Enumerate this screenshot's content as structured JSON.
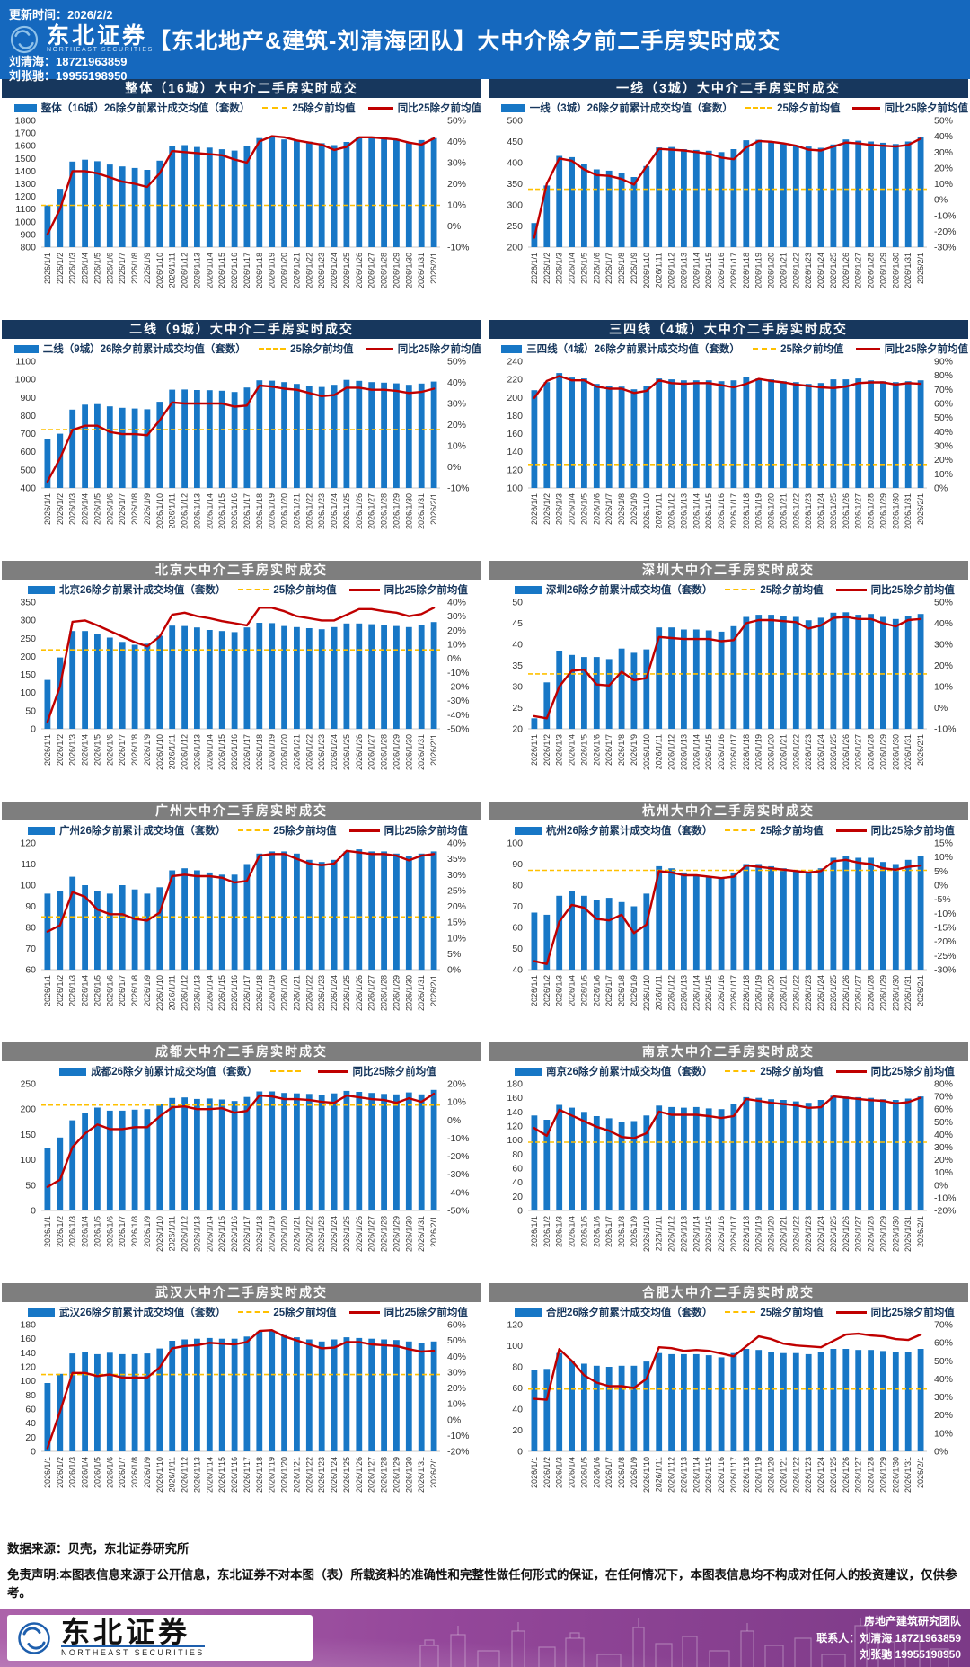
{
  "header": {
    "update_time": "更新时间：2026/2/2",
    "brand": {
      "name": "东北证券",
      "sub": "NORTHEAST SECURITIES"
    },
    "title": "【东北地产&建筑-刘清海团队】大中介除夕前二手房实时成交",
    "contact1": "刘清海：18721963859",
    "contact2": "刘张驰：19955198950"
  },
  "colors": {
    "header_bg": "#1568BE",
    "navy_title_bar": "#17375D",
    "gray_title_bar": "#7E7E7E",
    "bar": "#1777C6",
    "baseline_dash": "#FFC000",
    "yoy_line": "#C00000"
  },
  "footer": {
    "source_label": "数据来源：",
    "source_text": "贝壳，东北证券研究所",
    "disclaimer_label": "免责声明:",
    "disclaimer_text": "本图表信息来源于公开信息，东北证券不对本图（表）所载资料的准确性和完整性做任何形式的保证，在任何情况下，本图表信息均不构成对任何人的投资建议，仅供参考。",
    "band": {
      "brand": "东北证券",
      "brand_sub": "NORTHEAST SECURITIES",
      "team": "房地产建筑研究团队",
      "contact1": "联系人：刘清海 18721963859",
      "contact2": "刘张驰 19955198950"
    }
  },
  "dates": [
    "2026/1/1",
    "2026/1/2",
    "2026/1/3",
    "2026/1/4",
    "2026/1/5",
    "2026/1/6",
    "2026/1/7",
    "2026/1/8",
    "2026/1/9",
    "2026/1/10",
    "2026/1/11",
    "2026/1/12",
    "2026/1/13",
    "2026/1/14",
    "2026/1/15",
    "2026/1/16",
    "2026/1/17",
    "2026/1/18",
    "2026/1/19",
    "2026/1/20",
    "2026/1/21",
    "2026/1/22",
    "2026/1/23",
    "2026/1/24",
    "2026/1/25",
    "2026/1/26",
    "2026/1/27",
    "2026/1/28",
    "2026/1/29",
    "2026/1/30",
    "2026/1/31",
    "2026/2/1"
  ],
  "chart_data": [
    {
      "key": "overall-16",
      "type": "bar+line",
      "title": "整体（16城）大中介二手房实时成交",
      "header": "navy",
      "legend": {
        "bar": "整体（16城）26除夕前累计成交均值（套数）",
        "dash": "25除夕前均值",
        "line": "同比25除夕前均值"
      },
      "left_axis": {
        "min": 800,
        "max": 1800,
        "step": 100
      },
      "right_axis": {
        "min": -10,
        "max": 50,
        "step": 10
      },
      "baseline": 1130,
      "bars": [
        1130,
        1260,
        1475,
        1490,
        1478,
        1452,
        1437,
        1425,
        1410,
        1482,
        1597,
        1605,
        1590,
        1585,
        1572,
        1562,
        1595,
        1660,
        1668,
        1650,
        1640,
        1632,
        1620,
        1605,
        1630,
        1665,
        1662,
        1655,
        1650,
        1628,
        1645,
        1660
      ],
      "yoy": [
        -4,
        8,
        26,
        26,
        25,
        23,
        21,
        20,
        18.5,
        25,
        35.5,
        35,
        34.5,
        34,
        33.5,
        31.5,
        30,
        40,
        42.5,
        42,
        40.5,
        39.5,
        38.5,
        36,
        37.5,
        42,
        42,
        41.5,
        41,
        39.5,
        38.5,
        41.5
      ]
    },
    {
      "key": "tier1-3",
      "type": "bar+line",
      "title": "一线（3城）大中介二手房实时成交",
      "header": "navy",
      "legend": {
        "bar": "一线（3城）26除夕前累计成交均值（套数）",
        "dash": "25除夕前均值",
        "line": "同比25除夕前均值"
      },
      "left_axis": {
        "min": 200,
        "max": 500,
        "step": 50
      },
      "right_axis": {
        "min": -30,
        "max": 50,
        "step": 10
      },
      "baseline": 337,
      "bars": [
        257,
        346,
        416,
        413,
        396,
        384,
        381,
        375,
        366,
        392,
        436,
        437,
        432,
        430,
        428,
        425,
        432,
        453,
        454,
        448,
        444,
        441,
        438,
        435,
        443,
        455,
        452,
        450,
        447,
        444,
        450,
        460
      ],
      "yoy": [
        -24,
        10,
        26,
        24.5,
        19,
        15.5,
        15,
        13,
        9.5,
        21,
        32,
        31.5,
        31,
        30,
        29,
        26.5,
        25.5,
        33,
        37,
        36.5,
        35.5,
        34,
        31.5,
        31,
        33.5,
        36,
        35.5,
        34.5,
        34,
        33.5,
        34.5,
        38.5
      ]
    },
    {
      "key": "tier2-9",
      "type": "bar+line",
      "title": "二线（9城）大中介二手房实时成交",
      "header": "navy",
      "legend": {
        "bar": "二线（9城）26除夕前累计成交均值（套数）",
        "dash": "25除夕前均值",
        "line": "同比25除夕前均值"
      },
      "left_axis": {
        "min": 400,
        "max": 1100,
        "step": 100
      },
      "right_axis": {
        "min": -10,
        "max": 50,
        "step": 10
      },
      "baseline": 722,
      "bars": [
        668,
        700,
        833,
        860,
        863,
        851,
        843,
        839,
        835,
        876,
        943,
        944,
        941,
        940,
        937,
        930,
        955,
        995,
        993,
        985,
        975,
        966,
        958,
        970,
        997,
        992,
        985,
        982,
        978,
        970,
        977,
        988
      ],
      "yoy": [
        -7,
        4,
        17.5,
        19.5,
        19.5,
        16.5,
        15.5,
        15.5,
        15,
        22,
        30.5,
        30,
        30,
        30,
        30,
        28.5,
        29,
        38.5,
        38,
        37,
        36.5,
        35,
        33.5,
        34,
        37.5,
        37.5,
        36.5,
        36.5,
        36,
        35,
        35.5,
        37
      ]
    },
    {
      "key": "tier34-4",
      "type": "bar+line",
      "title": "三四线（4城）大中介二手房实时成交",
      "header": "navy",
      "legend": {
        "bar": "三四线（4城）26除夕前累计成交均值（套数）",
        "dash": "25除夕前均值",
        "line": "同比25除夕前均值"
      },
      "left_axis": {
        "min": 100,
        "max": 240,
        "step": 20
      },
      "right_axis": {
        "min": 0,
        "max": 90,
        "step": 10
      },
      "baseline": 126,
      "bars": [
        208,
        217,
        227,
        222,
        221,
        215,
        213,
        212,
        209,
        213,
        221,
        220,
        219,
        219,
        219,
        218,
        219,
        223,
        221,
        220,
        218,
        217,
        215,
        216,
        220,
        220,
        221,
        219,
        218,
        217,
        218,
        219
      ],
      "yoy": [
        64,
        76,
        79.5,
        76.5,
        76.5,
        72,
        70.5,
        70.5,
        67.5,
        69,
        76.5,
        74.5,
        74,
        74.5,
        74.5,
        73,
        71.5,
        74,
        77.5,
        76,
        75,
        73.5,
        72.5,
        71.5,
        71,
        72,
        74.5,
        75,
        75,
        73.5,
        74.5,
        74
      ]
    },
    {
      "key": "beijing",
      "type": "bar+line",
      "title": "北京大中介二手房实时成交",
      "header": "gray",
      "legend": {
        "bar": "北京26除夕前累计成交均值（套数）",
        "dash": "25除夕前均值",
        "line": "同比25除夕前均值"
      },
      "left_axis": {
        "min": 0,
        "max": 350,
        "step": 50
      },
      "right_axis": {
        "min": -50,
        "max": 40,
        "step": 10
      },
      "baseline": 218,
      "bars": [
        135,
        197,
        270,
        270,
        262,
        252,
        240,
        232,
        235,
        257,
        285,
        284,
        280,
        273,
        270,
        267,
        280,
        293,
        292,
        284,
        281,
        278,
        275,
        281,
        291,
        291,
        289,
        287,
        284,
        281,
        288,
        295
      ],
      "yoy": [
        -45,
        -20,
        26,
        27,
        23.5,
        19.5,
        15.5,
        11.5,
        8.5,
        15.5,
        31,
        32.5,
        30,
        28.5,
        26.5,
        25,
        23.5,
        36,
        36,
        33.5,
        30,
        28.5,
        27,
        27,
        31,
        35,
        35,
        33.5,
        32.5,
        30,
        31.5,
        36
      ]
    },
    {
      "key": "shenzhen",
      "type": "bar+line",
      "title": "深圳大中介二手房实时成交",
      "header": "gray",
      "legend": {
        "bar": "深圳26除夕前累计成交均值（套数）",
        "dash": "25除夕前均值",
        "line": "同比25除夕前均值"
      },
      "left_axis": {
        "min": 20,
        "max": 50,
        "step": 5
      },
      "right_axis": {
        "min": -10,
        "max": 50,
        "step": 10
      },
      "baseline": 33,
      "bars": [
        22.5,
        31,
        38.5,
        37.5,
        37,
        37,
        36.5,
        39,
        38,
        38.8,
        44,
        44,
        43.5,
        43.5,
        43.3,
        43,
        44.3,
        46.5,
        47,
        47,
        46.7,
        46.5,
        45.7,
        46.3,
        47.5,
        47.6,
        47,
        47.2,
        46.5,
        46,
        46.8,
        47.2
      ],
      "yoy": [
        -4,
        -5,
        10,
        17.5,
        18,
        11,
        10.5,
        17,
        13,
        14,
        33.5,
        33,
        32.5,
        32.5,
        32.5,
        31.5,
        32,
        40,
        41.5,
        41.5,
        41,
        40.5,
        37.5,
        39,
        42.5,
        43,
        42,
        42,
        40,
        38.5,
        41.5,
        42
      ]
    },
    {
      "key": "guangzhou",
      "type": "bar+line",
      "title": "广州大中介二手房实时成交",
      "header": "gray",
      "legend": {
        "bar": "广州26除夕前累计成交均值（套数）",
        "dash": "25除夕前均值",
        "line": "同比25除夕前均值"
      },
      "left_axis": {
        "min": 60,
        "max": 120,
        "step": 10
      },
      "right_axis": {
        "min": 0,
        "max": 40,
        "step": 5
      },
      "baseline": 85,
      "bars": [
        96,
        97,
        104,
        100,
        97,
        96,
        100,
        98,
        96,
        99,
        107,
        108,
        107,
        106,
        105,
        105,
        110,
        115,
        116,
        116,
        115,
        112,
        111,
        112,
        116,
        117,
        116,
        116,
        115,
        114,
        115,
        116
      ],
      "yoy": [
        12,
        14,
        24.5,
        23,
        19,
        17.5,
        17.5,
        16,
        15.5,
        18,
        29.5,
        30,
        29.5,
        29.5,
        29,
        27.5,
        28,
        36,
        36.5,
        36.5,
        35,
        33.5,
        33,
        33.5,
        37.5,
        37,
        36.5,
        36.5,
        36,
        34.5,
        36,
        36.5
      ]
    },
    {
      "key": "hangzhou",
      "type": "bar+line",
      "title": "杭州大中介二手房实时成交",
      "header": "gray",
      "legend": {
        "bar": "杭州26除夕前累计成交均值（套数）",
        "dash": "25除夕前均值",
        "line": "同比25除夕前均值"
      },
      "left_axis": {
        "min": 40,
        "max": 100,
        "step": 10
      },
      "right_axis": {
        "min": -30,
        "max": 15,
        "step": 5
      },
      "baseline": 87,
      "bars": [
        67,
        66,
        75,
        77,
        75,
        73,
        74,
        72,
        70,
        76,
        89,
        88,
        86,
        85,
        84,
        83,
        86,
        90,
        90,
        89,
        88,
        87,
        86,
        88,
        93,
        94,
        93,
        93,
        91,
        90,
        92,
        94
      ],
      "yoy": [
        -27,
        -28,
        -13,
        -7,
        -8,
        -12,
        -12.5,
        -10.5,
        -17,
        -14,
        5,
        4.5,
        3.5,
        3.5,
        3,
        2.5,
        3,
        7,
        6.5,
        6,
        5.5,
        5,
        4.5,
        5,
        8.5,
        9,
        8,
        7.5,
        6,
        5.5,
        6.5,
        7
      ]
    },
    {
      "key": "chengdu",
      "type": "bar+line",
      "title": "成都大中介二手房实时成交",
      "header": "gray",
      "legend": {
        "bar": "成都26除夕前累计成交均值（套数）",
        "dash": "",
        "line": "同比25除夕前均值"
      },
      "left_axis": {
        "min": 0,
        "max": 250,
        "step": 50
      },
      "right_axis": {
        "min": -50,
        "max": 20,
        "step": 10
      },
      "baseline": 208,
      "bars": [
        124,
        144,
        178,
        193,
        203,
        197,
        197,
        199,
        200,
        210,
        222,
        223,
        220,
        221,
        219,
        216,
        224,
        235,
        235,
        232,
        231,
        230,
        228,
        231,
        236,
        234,
        232,
        230,
        229,
        233,
        229,
        238
      ],
      "yoy": [
        -37,
        -33,
        -15,
        -7.5,
        -2.5,
        -5,
        -5,
        -4,
        -4,
        2,
        7,
        7.5,
        6,
        6,
        6.5,
        4,
        5,
        13.5,
        13,
        11.5,
        11.5,
        11,
        10,
        9.5,
        13.5,
        12.5,
        11.5,
        11,
        9.5,
        12,
        10,
        14.5
      ]
    },
    {
      "key": "nanjing",
      "type": "bar+line",
      "title": "南京大中介二手房实时成交",
      "header": "gray",
      "legend": {
        "bar": "南京26除夕前累计成交均值（套数）",
        "dash": "25除夕前均值",
        "line": "同比25除夕前均值"
      },
      "left_axis": {
        "min": 0,
        "max": 180,
        "step": 20
      },
      "right_axis": {
        "min": -20,
        "max": 80,
        "step": 10
      },
      "baseline": 97,
      "bars": [
        135,
        129,
        150,
        146,
        140,
        134,
        131,
        126,
        127,
        135,
        149,
        147,
        146,
        147,
        145,
        144,
        151,
        161,
        160,
        158,
        157,
        155,
        153,
        157,
        163,
        162,
        161,
        160,
        158,
        157,
        159,
        162
      ],
      "yoy": [
        45,
        39,
        59.5,
        55,
        50.5,
        46,
        43,
        38,
        37,
        41,
        58,
        55.5,
        55.5,
        55.5,
        54.5,
        53,
        54.5,
        68,
        66.5,
        65,
        64,
        63,
        61,
        61.5,
        70,
        69,
        68,
        67,
        66.5,
        64.5,
        65.5,
        69
      ]
    },
    {
      "key": "wuhan",
      "type": "bar+line",
      "title": "武汉大中介二手房实时成交",
      "header": "gray",
      "legend": {
        "bar": "武汉26除夕前累计成交均值（套数）",
        "dash": "25除夕前均值",
        "line": "同比25除夕前均值"
      },
      "left_axis": {
        "min": 0,
        "max": 180,
        "step": 20
      },
      "right_axis": {
        "min": -20,
        "max": 60,
        "step": 10
      },
      "baseline": 109,
      "bars": [
        97,
        110,
        139,
        141,
        138,
        140,
        138,
        138,
        139,
        146,
        157,
        159,
        160,
        161,
        160,
        160,
        163,
        170,
        171,
        165,
        162,
        159,
        156,
        159,
        162,
        161,
        160,
        159,
        158,
        156,
        154,
        156
      ],
      "yoy": [
        -18,
        5,
        29.5,
        29.5,
        27.5,
        28.5,
        26.5,
        26.5,
        26.5,
        33,
        45,
        46.5,
        47,
        48.5,
        48,
        47.5,
        49,
        56,
        56.5,
        52.5,
        50,
        47.5,
        45,
        45.5,
        49,
        49,
        47.5,
        47,
        46.5,
        44.5,
        43,
        43.5
      ]
    },
    {
      "key": "hefei",
      "type": "bar+line",
      "title": "合肥大中介二手房实时成交",
      "header": "gray",
      "legend": {
        "bar": "合肥26除夕前累计成交均值（套数）",
        "dash": "25除夕前均值",
        "line": "同比25除夕前均值"
      },
      "left_axis": {
        "min": 0,
        "max": 120,
        "step": 20
      },
      "right_axis": {
        "min": 0,
        "max": 70,
        "step": 10
      },
      "baseline": 59,
      "bars": [
        77,
        78,
        93,
        86,
        83,
        81,
        80,
        81,
        81,
        85,
        93,
        92,
        92,
        92,
        91,
        89,
        93,
        97,
        96,
        94,
        93,
        93,
        92,
        94,
        97,
        97,
        96,
        96,
        95,
        94,
        94,
        97
      ],
      "yoy": [
        29,
        28.5,
        56.5,
        50,
        42,
        38,
        36,
        36,
        35,
        40,
        57.5,
        57,
        55.5,
        56,
        55.5,
        54,
        52.5,
        58,
        63.5,
        62,
        59.5,
        58.5,
        58,
        57.5,
        61,
        64.5,
        65,
        64,
        63.5,
        62,
        61.5,
        64.5
      ]
    }
  ]
}
